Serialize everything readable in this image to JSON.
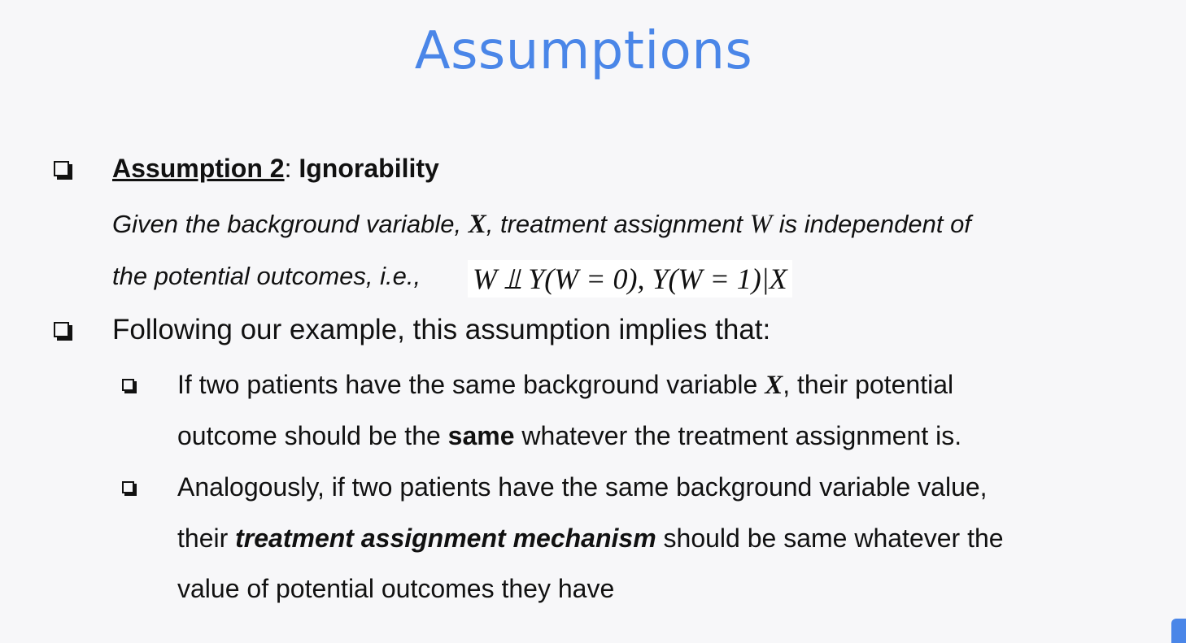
{
  "title": "Assumptions",
  "bullet1": {
    "heading_underlined": "Assumption 2",
    "heading_colon": ": ",
    "heading_rest": "Ignorability",
    "line1_a": "Given the background variable, ",
    "line1_x": "X",
    "line1_b": ", treatment assignment ",
    "line1_w": "W",
    "line1_c": " is independent of",
    "line2": "the potential outcomes, i.e.,",
    "formula": "W ⫫ Y(W = 0), Y(W = 1)|X"
  },
  "bullet2": {
    "text": "Following our example, this assumption implies that:"
  },
  "sub1": {
    "line1_a": "If two patients have the same background variable ",
    "line1_x": "X",
    "line1_b": ", their potential",
    "line2_a": "outcome should be the ",
    "line2_bold": "same",
    "line2_b": " whatever the treatment assignment is."
  },
  "sub2": {
    "line1": "Analogously, if two patients have the same background variable value,",
    "line2_a": "their ",
    "line2_bi": "treatment assignment mechanism",
    "line2_b": " should be same whatever the",
    "line3": "value of potential outcomes they have"
  }
}
